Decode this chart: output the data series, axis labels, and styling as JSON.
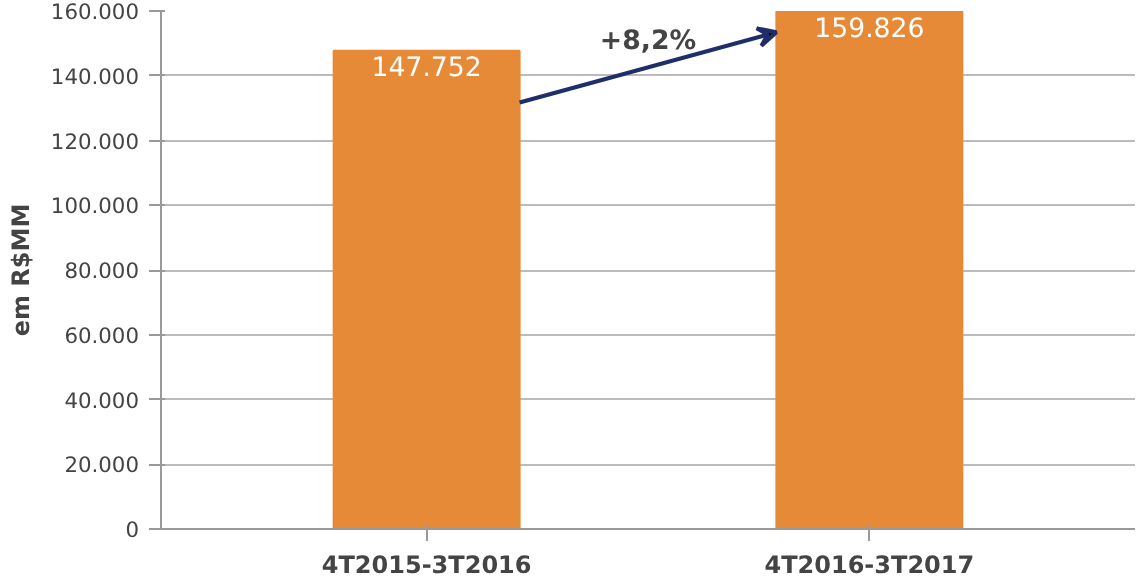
{
  "chart_data": {
    "type": "bar",
    "ylabel": "em R$MM",
    "categories": [
      "4T2015-3T2016",
      "4T2016-3T2017"
    ],
    "values": [
      147752,
      159826
    ],
    "value_labels": [
      "147.752",
      "159.826"
    ],
    "color": "#e68a37",
    "ylim": [
      0,
      160000
    ],
    "yticks": [
      {
        "value": 0,
        "label": "0"
      },
      {
        "value": 20000,
        "label": "20.000"
      },
      {
        "value": 40000,
        "label": "40.000"
      },
      {
        "value": 60000,
        "label": "60.000"
      },
      {
        "value": 80000,
        "label": "80.000"
      },
      {
        "value": 100000,
        "label": "100.000"
      },
      {
        "value": 120000,
        "label": "120.000"
      },
      {
        "value": 140000,
        "label": "140.000"
      },
      {
        "value": 160000,
        "label": "160.000"
      }
    ],
    "grid": "y",
    "annotations": [
      "+8,2%"
    ]
  }
}
